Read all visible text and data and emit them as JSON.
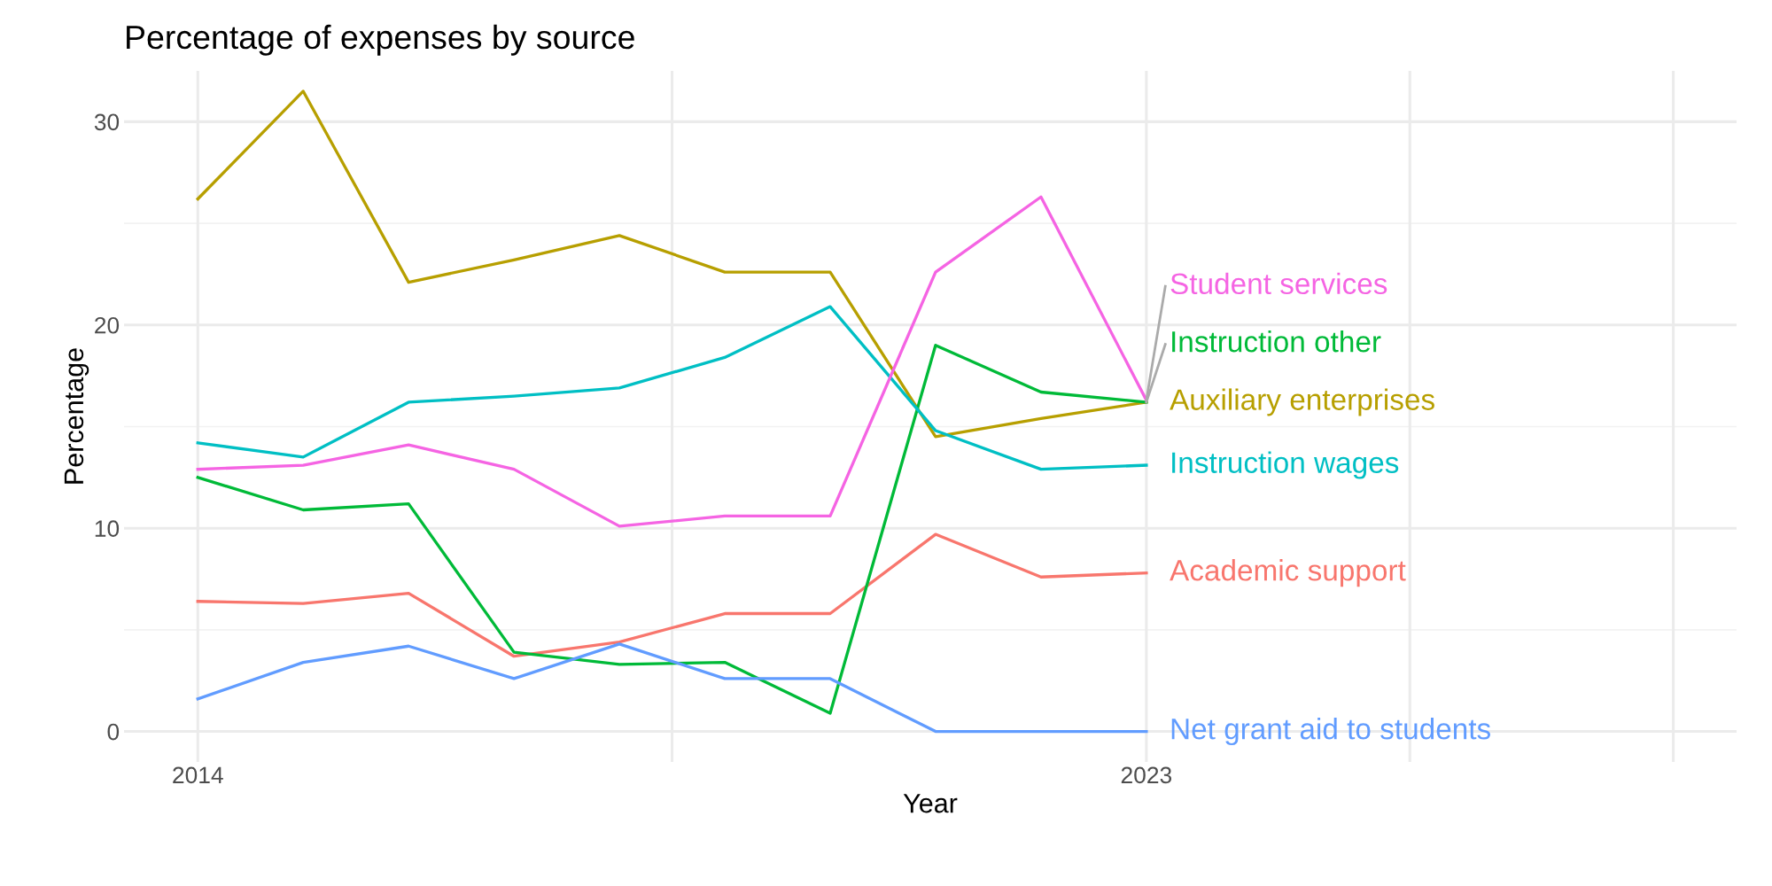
{
  "chart_data": {
    "type": "line",
    "title": "Percentage of expenses by source",
    "xlabel": "Year",
    "ylabel": "Percentage",
    "x": [
      2014,
      2015,
      2016,
      2017,
      2018,
      2019,
      2020,
      2021,
      2022,
      2023
    ],
    "xlim": [
      2013.3,
      2028.6
    ],
    "xticks": [
      2014,
      {
        "value": 2018.5,
        "label": null
      },
      2023,
      {
        "value": 2025.5,
        "label": null
      },
      {
        "value": 2028,
        "label": null
      }
    ],
    "ylim": [
      -1.5,
      32.5
    ],
    "yticks": [
      0,
      10,
      20,
      30
    ],
    "grid": true,
    "legend": false,
    "series": [
      {
        "name": "Academic support",
        "color": "#F8766D",
        "values": [
          6.4,
          6.3,
          6.8,
          3.7,
          4.4,
          5.8,
          5.8,
          9.7,
          7.6,
          7.8
        ]
      },
      {
        "name": "Auxiliary enterprises",
        "color": "#B79F00",
        "values": [
          26.2,
          31.5,
          22.1,
          23.2,
          24.4,
          22.6,
          22.6,
          14.5,
          15.4,
          16.2
        ]
      },
      {
        "name": "Instruction other",
        "color": "#00BA38",
        "values": [
          12.5,
          10.9,
          11.2,
          3.9,
          3.3,
          3.4,
          0.9,
          19.0,
          16.7,
          16.2
        ]
      },
      {
        "name": "Instruction wages",
        "color": "#00BFC4",
        "values": [
          14.2,
          13.5,
          16.2,
          16.5,
          16.9,
          18.4,
          20.9,
          14.8,
          12.9,
          13.1
        ]
      },
      {
        "name": "Net grant aid to students",
        "color": "#619CFF",
        "values": [
          1.6,
          3.4,
          4.2,
          2.6,
          4.3,
          2.6,
          2.6,
          0,
          0,
          0
        ]
      },
      {
        "name": "Student services",
        "color": "#F564E3",
        "values": [
          12.9,
          13.1,
          14.1,
          12.9,
          10.1,
          10.6,
          10.6,
          22.6,
          26.3,
          16.3
        ]
      }
    ]
  }
}
